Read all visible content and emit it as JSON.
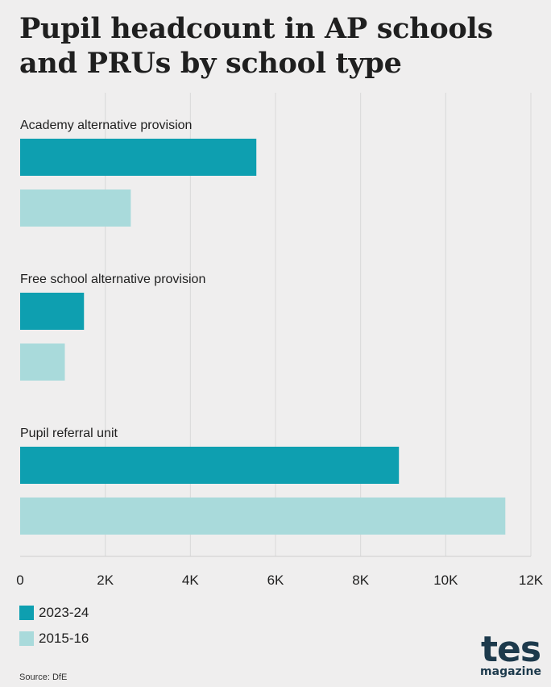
{
  "title": "Pupil headcount in AP schools and PRUs by school type",
  "source": "Source: DfE",
  "logo": {
    "main": "tes",
    "sub": "magazine"
  },
  "colors": {
    "series_2023": "#0e9fb0",
    "series_2015": "#a9dadb",
    "grid": "#d8d8d8",
    "background": "#efeeee"
  },
  "legend": [
    {
      "label": "2023-24",
      "color": "#0e9fb0"
    },
    {
      "label": "2015-16",
      "color": "#a9dadb"
    }
  ],
  "chart_data": {
    "type": "bar",
    "orientation": "horizontal",
    "title": "Pupil headcount in AP schools and PRUs by school type",
    "categories": [
      "Academy alternative provision",
      "Free school alternative provision",
      "Pupil referral unit"
    ],
    "series": [
      {
        "name": "2023-24",
        "values": [
          5550,
          1500,
          8900
        ],
        "color": "#0e9fb0"
      },
      {
        "name": "2015-16",
        "values": [
          2600,
          1050,
          11400
        ],
        "color": "#a9dadb"
      }
    ],
    "xlim": [
      0,
      12000
    ],
    "xticks": [
      0,
      2000,
      4000,
      6000,
      8000,
      10000,
      12000
    ],
    "xtick_labels": [
      "0",
      "2K",
      "4K",
      "6K",
      "8K",
      "10K",
      "12K"
    ],
    "grid": true,
    "legend_position": "bottom-left"
  }
}
